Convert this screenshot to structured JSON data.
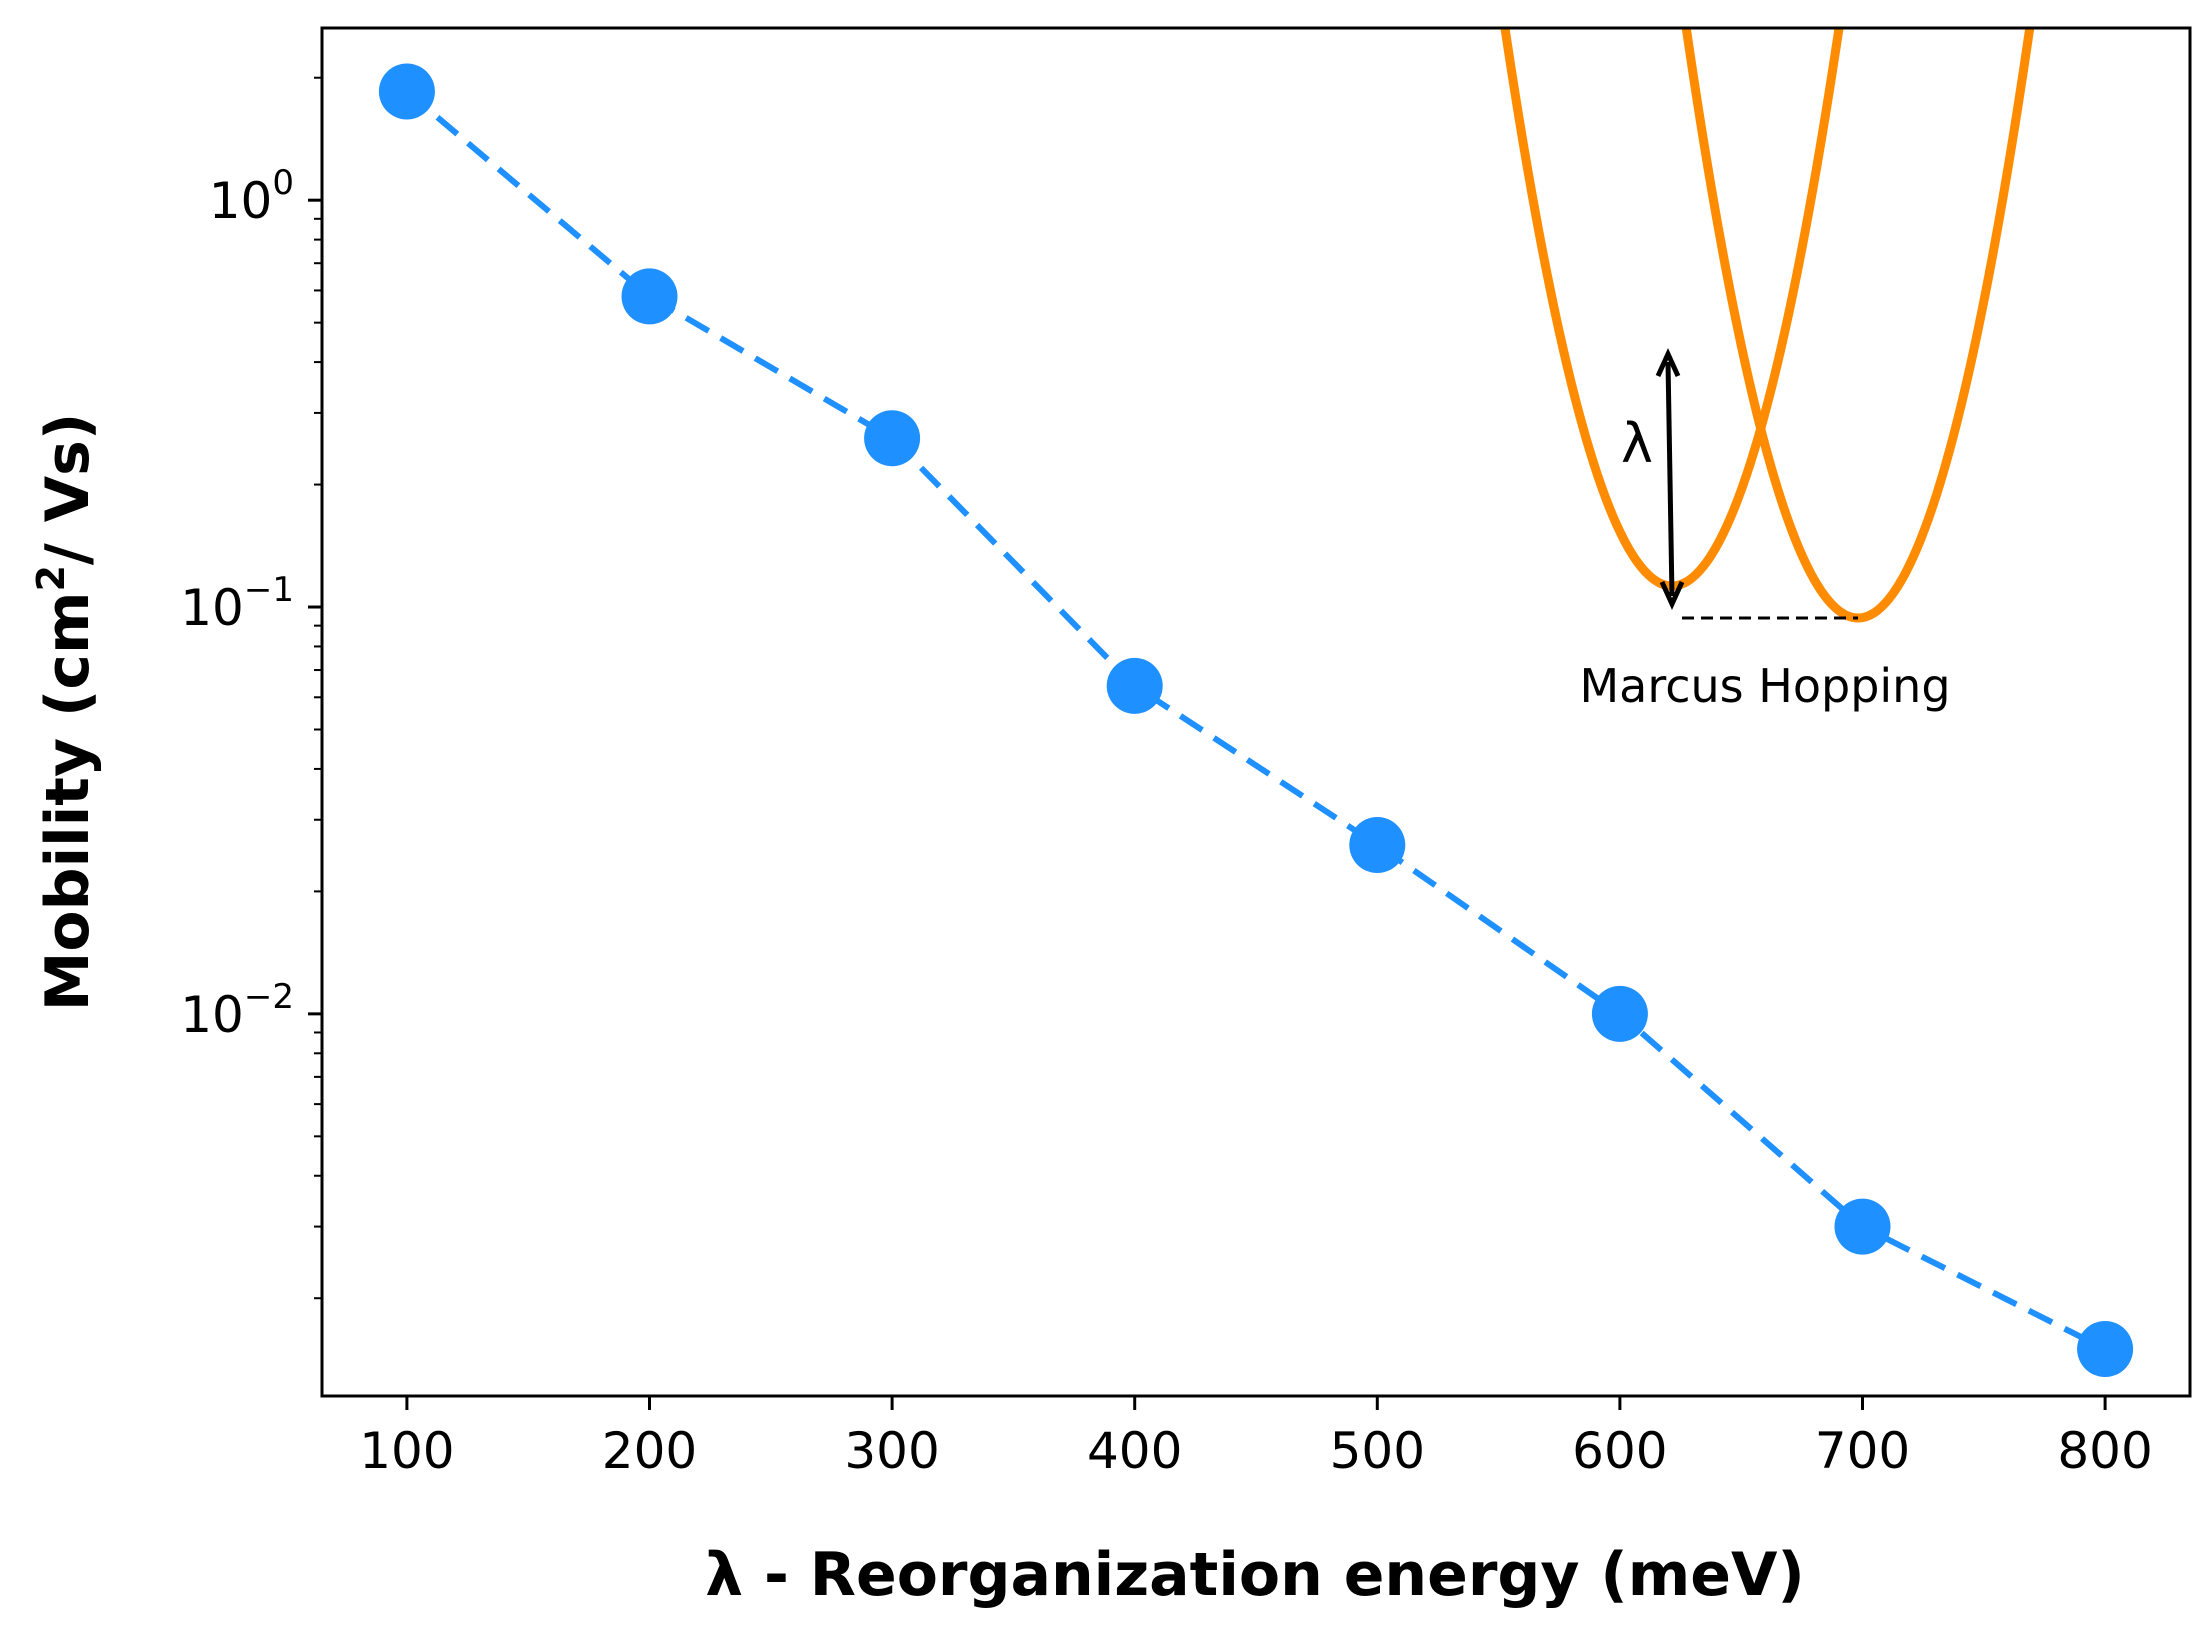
{
  "chart_data": {
    "type": "line",
    "x": [
      100,
      200,
      300,
      400,
      500,
      600,
      700,
      800
    ],
    "series": [
      {
        "values": [
          1.85,
          0.58,
          0.26,
          0.064,
          0.026,
          0.01,
          0.003,
          0.0015
        ],
        "color": "#1e90ff"
      }
    ],
    "xlabel": "λ - Reorganization energy (meV)",
    "ylabel_main": "Mobility (cm",
    "ylabel_sup": "2",
    "ylabel_tail": "/ Vs)",
    "xlim": [
      65,
      835
    ],
    "ylim": [
      0.00115,
      2.65
    ],
    "yscale": "log",
    "xticks": [
      "100",
      "200",
      "300",
      "400",
      "500",
      "600",
      "700",
      "800"
    ],
    "yticks": [
      {
        "value": 1,
        "base": "10",
        "exp": "0"
      },
      {
        "value": 0.1,
        "base": "10",
        "exp": "−1"
      },
      {
        "value": 0.01,
        "base": "10",
        "exp": "−2"
      }
    ],
    "grid": false,
    "line_style": "dashed",
    "marker": "circle",
    "inset": {
      "label": "Marcus Hopping",
      "lambda_symbol": "λ",
      "curve_color": "#ff8c00"
    }
  }
}
